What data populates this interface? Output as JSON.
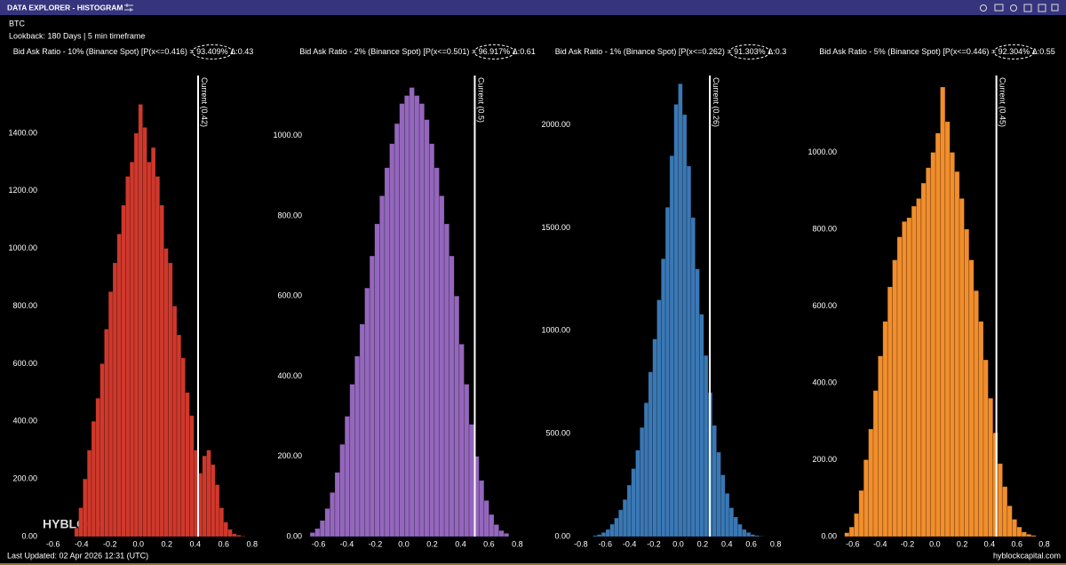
{
  "header": {
    "title": "DATA EXPLORER - HISTOGRAM",
    "asset": "BTC",
    "lookback": "Lookback: 180 Days | 5 min timeframe"
  },
  "footer": {
    "updated": "Last Updated: 02 Apr 2026 12:31 (UTC)",
    "site": "hyblockcapital.com",
    "brand": "HYBLOCK"
  },
  "chart_data": [
    {
      "type": "histogram",
      "title": "Bid Ask Ratio - 10% (Binance Spot) [P(x<=0.416) =",
      "probability": "93.409%",
      "delta": "Δ:0.43",
      "color": "#d0382c",
      "bins": [
        -0.45,
        -0.42,
        -0.39,
        -0.36,
        -0.33,
        -0.3,
        -0.27,
        -0.24,
        -0.21,
        -0.18,
        -0.15,
        -0.12,
        -0.09,
        -0.06,
        -0.03,
        0,
        0.03,
        0.06,
        0.09,
        0.12,
        0.15,
        0.18,
        0.21,
        0.24,
        0.27,
        0.3,
        0.33,
        0.36,
        0.39,
        0.42,
        0.45,
        0.48,
        0.51,
        0.54,
        0.57,
        0.6,
        0.63,
        0.66,
        0.69,
        0.72,
        0.75
      ],
      "values": [
        30,
        100,
        200,
        300,
        400,
        480,
        600,
        720,
        850,
        950,
        1050,
        1150,
        1250,
        1300,
        1400,
        1500,
        1420,
        1300,
        1350,
        1250,
        1150,
        1000,
        950,
        800,
        700,
        620,
        500,
        420,
        300,
        220,
        280,
        300,
        250,
        180,
        100,
        50,
        25,
        10,
        5,
        2
      ],
      "xlim": [
        -0.68,
        0.87
      ],
      "ylim": [
        0,
        1600
      ],
      "xticks": [
        -0.6,
        -0.4,
        -0.2,
        {
          "value": 0,
          "label": "0.0"
        },
        0.2,
        0.4,
        0.6,
        0.8
      ],
      "yticks": [
        {
          "value": 0,
          "label": "0.00"
        },
        {
          "value": 200,
          "label": "200.00"
        },
        {
          "value": 400,
          "label": "400.00"
        },
        {
          "value": 600,
          "label": "600.00"
        },
        {
          "value": 800,
          "label": "800.00"
        },
        {
          "value": 1000,
          "label": "1000.00"
        },
        {
          "value": 1200,
          "label": "1200.00"
        },
        {
          "value": 1400,
          "label": "1400.00"
        }
      ],
      "current": 0.42,
      "current_label": "Current (0.42)"
    },
    {
      "type": "histogram",
      "title": "Bid Ask Ratio - 2% (Binance Spot) [P(x<=0.501) =",
      "probability": "96.917%",
      "delta": "Δ:0.61",
      "color": "#9467bd",
      "bins": [
        -0.66,
        -0.625,
        -0.59,
        -0.555,
        -0.52,
        -0.485,
        -0.45,
        -0.415,
        -0.38,
        -0.345,
        -0.31,
        -0.275,
        -0.24,
        -0.205,
        -0.17,
        -0.135,
        -0.1,
        -0.065,
        -0.03,
        0.005,
        0.04,
        0.075,
        0.11,
        0.145,
        0.18,
        0.215,
        0.25,
        0.285,
        0.32,
        0.355,
        0.39,
        0.425,
        0.46,
        0.495,
        0.53,
        0.565,
        0.6,
        0.635,
        0.67,
        0.705,
        0.74
      ],
      "values": [
        10,
        20,
        40,
        70,
        110,
        160,
        230,
        300,
        380,
        450,
        530,
        620,
        700,
        780,
        850,
        920,
        980,
        1030,
        1080,
        1100,
        1120,
        1100,
        1080,
        1040,
        980,
        920,
        850,
        780,
        700,
        600,
        480,
        380,
        280,
        200,
        140,
        90,
        55,
        30,
        15,
        8
      ],
      "xlim": [
        -0.685,
        0.885
      ],
      "ylim": [
        0,
        1150
      ],
      "xticks": [
        -0.6,
        -0.4,
        -0.2,
        {
          "value": 0,
          "label": "0.0"
        },
        0.2,
        0.4,
        0.6,
        0.8
      ],
      "yticks": [
        {
          "value": 0,
          "label": "0.00"
        },
        {
          "value": 200,
          "label": "200.00"
        },
        {
          "value": 400,
          "label": "400.00"
        },
        {
          "value": 600,
          "label": "600.00"
        },
        {
          "value": 800,
          "label": "800.00"
        },
        {
          "value": 1000,
          "label": "1000.00"
        }
      ],
      "current": 0.5,
      "current_label": "Current (0.5)"
    },
    {
      "type": "histogram",
      "title": "Bid Ask Ratio - 1% (Binance Spot) [P(x<=0.262) =",
      "probability": "91.303%",
      "delta": "Δ:0.3",
      "color": "#3a78b5",
      "bins": [
        -0.7,
        -0.665,
        -0.63,
        -0.595,
        -0.56,
        -0.525,
        -0.49,
        -0.455,
        -0.42,
        -0.385,
        -0.35,
        -0.315,
        -0.28,
        -0.245,
        -0.21,
        -0.175,
        -0.14,
        -0.105,
        -0.07,
        -0.035,
        0,
        0.035,
        0.07,
        0.105,
        0.14,
        0.175,
        0.21,
        0.245,
        0.28,
        0.315,
        0.35,
        0.385,
        0.42,
        0.455,
        0.49,
        0.525,
        0.56,
        0.595,
        0.63,
        0.665,
        0.7
      ],
      "values": [
        5,
        10,
        20,
        35,
        60,
        90,
        130,
        180,
        250,
        330,
        420,
        530,
        650,
        800,
        960,
        1150,
        1350,
        1600,
        1850,
        2100,
        2200,
        2050,
        1800,
        1550,
        1300,
        1080,
        880,
        700,
        540,
        410,
        300,
        210,
        140,
        95,
        60,
        35,
        20,
        10,
        5,
        2
      ],
      "xlim": [
        -0.85,
        0.96
      ],
      "ylim": [
        0,
        2240
      ],
      "xticks": [
        -0.8,
        -0.6,
        -0.4,
        -0.2,
        {
          "value": 0,
          "label": "0.0"
        },
        0.2,
        0.4,
        0.6,
        0.8
      ],
      "yticks": [
        {
          "value": 0,
          "label": "0.00"
        },
        {
          "value": 500,
          "label": "500.00"
        },
        {
          "value": 1000,
          "label": "1000.00"
        },
        {
          "value": 1500,
          "label": "1500.00"
        },
        {
          "value": 2000,
          "label": "2000.00"
        }
      ],
      "current": 0.26,
      "current_label": "Current (0.26)"
    },
    {
      "type": "histogram",
      "title": "Bid Ask Ratio - 5% (Binance Spot) [P(x<=0.446) =",
      "probability": "92.304%",
      "delta": "Δ:0.55",
      "color": "#f28e2b",
      "bins": [
        -0.66,
        -0.625,
        -0.59,
        -0.555,
        -0.52,
        -0.485,
        -0.45,
        -0.415,
        -0.38,
        -0.345,
        -0.31,
        -0.275,
        -0.24,
        -0.205,
        -0.17,
        -0.135,
        -0.1,
        -0.065,
        -0.03,
        0.005,
        0.04,
        0.075,
        0.11,
        0.145,
        0.18,
        0.215,
        0.25,
        0.285,
        0.32,
        0.355,
        0.39,
        0.425,
        0.46,
        0.495,
        0.53,
        0.565,
        0.6,
        0.635,
        0.67,
        0.705,
        0.74
      ],
      "values": [
        10,
        25,
        60,
        120,
        200,
        280,
        380,
        470,
        560,
        650,
        720,
        780,
        820,
        830,
        860,
        880,
        920,
        960,
        1000,
        1050,
        1170,
        1080,
        1000,
        950,
        880,
        800,
        720,
        640,
        560,
        460,
        360,
        270,
        190,
        130,
        80,
        45,
        25,
        12,
        6,
        3
      ],
      "xlim": [
        -0.684,
        0.894
      ],
      "ylim": [
        0,
        1200
      ],
      "xticks": [
        -0.6,
        -0.4,
        -0.2,
        {
          "value": 0,
          "label": "0.0"
        },
        0.2,
        0.4,
        0.6,
        0.8
      ],
      "yticks": [
        {
          "value": 0,
          "label": "0.00"
        },
        {
          "value": 200,
          "label": "200.00"
        },
        {
          "value": 400,
          "label": "400.00"
        },
        {
          "value": 600,
          "label": "600.00"
        },
        {
          "value": 800,
          "label": "800.00"
        },
        {
          "value": 1000,
          "label": "1000.00"
        }
      ],
      "current": 0.45,
      "current_label": "Current (0.45)"
    }
  ]
}
